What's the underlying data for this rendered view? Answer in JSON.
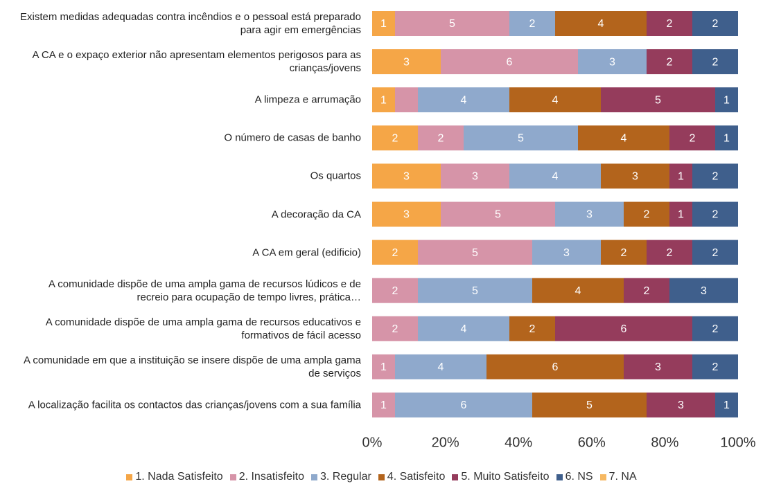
{
  "chart_data": {
    "type": "stacked_bar_100",
    "categories": [
      "Existem medidas adequadas contra incêndios e o pessoal está preparado para agir em emergências",
      "A CA e o expaço exterior não apresentam elementos perigosos para as crianças/jovens",
      "A limpeza e arrumação",
      "O número de casas de banho",
      "Os quartos",
      "A decoração da CA",
      "A CA em geral (edificio)",
      "A comunidade dispõe de uma ampla gama de recursos lúdicos e de recreio para ocupação de tempo livres, prática…",
      "A comunidade dispõe de uma ampla gama de recursos educativos e formativos de fácil acesso",
      "A comunidade em que a instituição se insere dispõe de uma ampla gama de serviços",
      "A localização facilita os contactos das crianças/jovens com a sua família"
    ],
    "series": [
      {
        "name": "1. Nada Satisfeito",
        "color": "#f5a647",
        "values": [
          1,
          3,
          1,
          2,
          3,
          3,
          2,
          null,
          null,
          null,
          null
        ]
      },
      {
        "name": "2. Insatisfeito",
        "color": "#d694a8",
        "values": [
          5,
          6,
          1,
          2,
          3,
          5,
          5,
          2,
          2,
          1,
          1
        ],
        "value_labels": [
          "5",
          "6",
          null,
          "2",
          "3",
          "5",
          "5",
          "2",
          "2",
          "1",
          "1"
        ]
      },
      {
        "name": "3. Regular",
        "color": "#8fa9cc",
        "values": [
          2,
          3,
          4,
          5,
          4,
          3,
          3,
          5,
          4,
          4,
          6
        ]
      },
      {
        "name": "4. Satisfeito",
        "color": "#b3641c",
        "values": [
          4,
          null,
          4,
          4,
          3,
          2,
          2,
          4,
          2,
          6,
          5
        ]
      },
      {
        "name": "5. Muito Satisfeito",
        "color": "#953c5c",
        "values": [
          2,
          2,
          5,
          2,
          1,
          1,
          2,
          2,
          6,
          3,
          3
        ]
      },
      {
        "name": "6. NS",
        "color": "#3f5f8c",
        "values": [
          2,
          2,
          1,
          1,
          2,
          2,
          2,
          3,
          2,
          2,
          1
        ]
      },
      {
        "name": "7. NA",
        "color": "#f6b862",
        "values": [
          null,
          null,
          null,
          null,
          null,
          null,
          null,
          null,
          null,
          null,
          null
        ]
      }
    ],
    "xlim": [
      0,
      100
    ],
    "xticks": [
      {
        "value": 0,
        "label": "0%"
      },
      {
        "value": 20,
        "label": "20%"
      },
      {
        "value": 40,
        "label": "40%"
      },
      {
        "value": 60,
        "label": "60%"
      },
      {
        "value": 80,
        "label": "80%"
      },
      {
        "value": 100,
        "label": "100%"
      }
    ]
  }
}
